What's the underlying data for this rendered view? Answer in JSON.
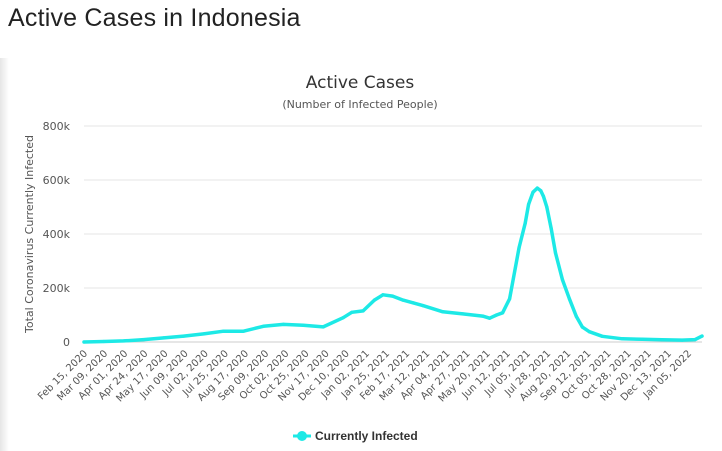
{
  "page": {
    "heading": "Active Cases in Indonesia"
  },
  "colors": {
    "series": "#1de9e6",
    "grid": "#e6e6e6",
    "axis_text": "#555555",
    "title_text": "#333333"
  },
  "chart_data": {
    "type": "area",
    "title": "Active Cases",
    "subtitle": "(Number of Infected People)",
    "xlabel": "",
    "ylabel": "Total Coronavirus Currently Infected",
    "ylim": [
      0,
      800000
    ],
    "yticks": [
      0,
      200000,
      400000,
      600000,
      800000
    ],
    "ytick_labels": [
      "0",
      "200k",
      "400k",
      "600k",
      "800k"
    ],
    "grid": true,
    "legend": "bottom-center",
    "xlim": [
      "2020-02-15",
      "2022-01-28"
    ],
    "xtick_labels": [
      "Feb 15, 2020",
      "Mar 09, 2020",
      "Apr 01, 2020",
      "Apr 24, 2020",
      "May 17, 2020",
      "Jun 09, 2020",
      "Jul 02, 2020",
      "Jul 25, 2020",
      "Aug 17, 2020",
      "Sep 09, 2020",
      "Oct 02, 2020",
      "Oct 25, 2020",
      "Nov 17, 2020",
      "Dec 10, 2020",
      "Jan 02, 2021",
      "Jan 25, 2021",
      "Feb 17, 2021",
      "Mar 12, 2021",
      "Apr 04, 2021",
      "Apr 27, 2021",
      "May 20, 2021",
      "Jun 12, 2021",
      "Jul 05, 2021",
      "Jul 28, 2021",
      "Aug 20, 2021",
      "Sep 12, 2021",
      "Oct 05, 2021",
      "Oct 28, 2021",
      "Nov 20, 2021",
      "Dec 13, 2021",
      "Jan 05, 2022"
    ],
    "series": [
      {
        "name": "Currently Infected",
        "color": "#1de9e6",
        "x": [
          "2020-02-15",
          "2020-03-09",
          "2020-04-01",
          "2020-04-24",
          "2020-05-17",
          "2020-06-09",
          "2020-07-02",
          "2020-07-25",
          "2020-08-17",
          "2020-09-09",
          "2020-10-02",
          "2020-10-25",
          "2020-11-17",
          "2020-12-10",
          "2020-12-20",
          "2021-01-02",
          "2021-01-15",
          "2021-01-25",
          "2021-02-05",
          "2021-02-17",
          "2021-03-01",
          "2021-03-12",
          "2021-04-04",
          "2021-04-27",
          "2021-05-20",
          "2021-05-28",
          "2021-06-05",
          "2021-06-12",
          "2021-06-20",
          "2021-07-01",
          "2021-07-08",
          "2021-07-12",
          "2021-07-17",
          "2021-07-22",
          "2021-07-26",
          "2021-07-29",
          "2021-08-02",
          "2021-08-07",
          "2021-08-12",
          "2021-08-20",
          "2021-08-28",
          "2021-09-05",
          "2021-09-12",
          "2021-09-20",
          "2021-10-05",
          "2021-10-28",
          "2021-11-20",
          "2021-12-13",
          "2022-01-05",
          "2022-01-20",
          "2022-01-28"
        ],
        "y": [
          0,
          2000,
          4000,
          9000,
          15000,
          22000,
          30000,
          40000,
          40000,
          58000,
          65000,
          62000,
          56000,
          90000,
          110000,
          115000,
          155000,
          175000,
          170000,
          155000,
          145000,
          135000,
          112000,
          104000,
          96000,
          88000,
          100000,
          108000,
          160000,
          350000,
          440000,
          510000,
          555000,
          570000,
          560000,
          540000,
          500000,
          420000,
          330000,
          230000,
          160000,
          95000,
          55000,
          38000,
          21000,
          12000,
          10000,
          8000,
          7000,
          9000,
          22000
        ]
      }
    ]
  }
}
